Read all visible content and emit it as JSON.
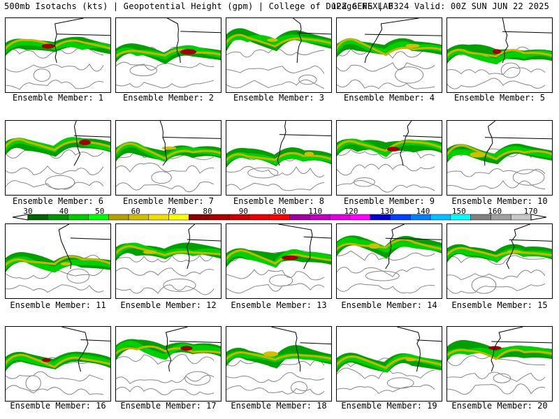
{
  "header": {
    "left": "500mb Isotachs (kts) | Geopotential Height (gpm) | College of DuPage NEXLAB",
    "right": "12Z GEFS | F324 Valid: 00Z SUN JUN 22 2025"
  },
  "legend": {
    "labels": [
      "30",
      "40",
      "50",
      "60",
      "70",
      "80",
      "90",
      "100",
      "110",
      "120",
      "130",
      "140",
      "150",
      "160",
      "170"
    ],
    "colors": [
      "#006400",
      "#009600",
      "#00c800",
      "#00ff00",
      "#b4a000",
      "#d2be00",
      "#f0dc00",
      "#ffff00",
      "#8c0000",
      "#aa0000",
      "#c80000",
      "#e60000",
      "#ff0000",
      "#a000a0",
      "#c000c0",
      "#e000e0",
      "#ff00ff",
      "#0000c8",
      "#0040ff",
      "#0080ff",
      "#00c0ff",
      "#00ffff",
      "#808080",
      "#a0a0a0",
      "#c8c8c8"
    ]
  },
  "members": [
    {
      "label": "Ensemble Member: 1"
    },
    {
      "label": "Ensemble Member: 2"
    },
    {
      "label": "Ensemble Member: 3"
    },
    {
      "label": "Ensemble Member: 4"
    },
    {
      "label": "Ensemble Member: 5"
    },
    {
      "label": "Ensemble Member: 6"
    },
    {
      "label": "Ensemble Member: 7"
    },
    {
      "label": "Ensemble Member: 8"
    },
    {
      "label": "Ensemble Member: 9"
    },
    {
      "label": "Ensemble Member: 10"
    },
    {
      "label": "Ensemble Member: 11"
    },
    {
      "label": "Ensemble Member: 12"
    },
    {
      "label": "Ensemble Member: 13"
    },
    {
      "label": "Ensemble Member: 14"
    },
    {
      "label": "Ensemble Member: 15"
    },
    {
      "label": "Ensemble Member: 16"
    },
    {
      "label": "Ensemble Member: 17"
    },
    {
      "label": "Ensemble Member: 18"
    },
    {
      "label": "Ensemble Member: 19"
    },
    {
      "label": "Ensemble Member: 20"
    }
  ]
}
